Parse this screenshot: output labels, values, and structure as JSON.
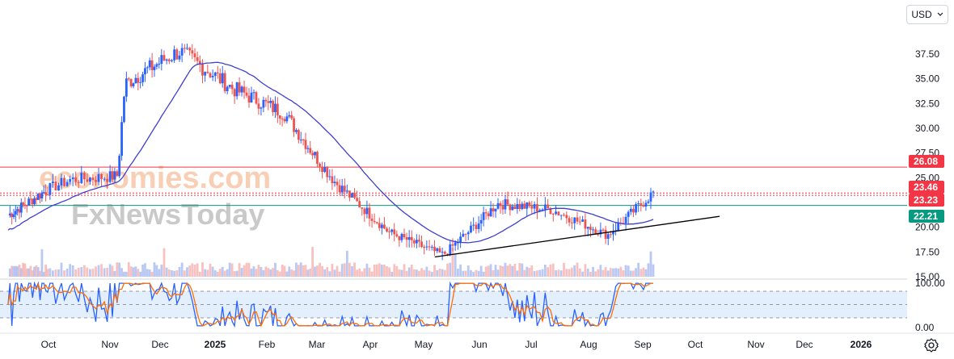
{
  "currency": {
    "label": "USD",
    "icon": "chevron-down-icon"
  },
  "settings": {
    "icon": "gear-icon"
  },
  "watermark": {
    "line1": "economies.com",
    "line2": "FxNewsToday"
  },
  "colors": {
    "up": "#2962ff",
    "down": "#ef5350",
    "ma": "#3f3fd0",
    "resistance": "#f23645",
    "support": "#089981",
    "trend": "#000000",
    "stoch_k": "#2962ff",
    "stoch_d": "#ff6d00",
    "stoch_band": "#e3effd"
  },
  "chart_data": {
    "type": "candlestick",
    "title": "",
    "price_axis": {
      "ticks": [
        "37.50",
        "35.00",
        "32.50",
        "30.00",
        "27.50",
        "25.00",
        "20.00",
        "17.50",
        "15.00"
      ],
      "range": [
        15.0,
        39.3
      ]
    },
    "time_axis": {
      "labels": [
        "Oct",
        "Nov",
        "Dec",
        "2025",
        "Feb",
        "Mar",
        "Apr",
        "May",
        "Jun",
        "Jul",
        "Aug",
        "Sep",
        "Oct",
        "Nov",
        "Dec",
        "2026"
      ],
      "bold": [
        "2025",
        "2026"
      ]
    },
    "price_tags": [
      {
        "label": "26.08",
        "value": 26.08,
        "color": "#f23645"
      },
      {
        "label": "23.46",
        "value": 23.46,
        "color": "#f23645"
      },
      {
        "label": "23.23",
        "value": 23.23,
        "color": "#f23645"
      },
      {
        "label": "22.21",
        "value": 22.21,
        "color": "#089981"
      }
    ],
    "horizontal_levels": [
      {
        "value": 26.08,
        "style": "solid",
        "color": "#f23645"
      },
      {
        "value": 23.46,
        "style": "dotted",
        "color": "#f23645"
      },
      {
        "value": 23.23,
        "style": "dotted",
        "color": "#f23645"
      },
      {
        "value": 22.21,
        "style": "solid",
        "color": "#089981"
      }
    ],
    "trendline": {
      "from": [
        "May",
        17.0
      ],
      "to": [
        "Nov",
        21.1
      ]
    },
    "oscillator": {
      "type": "stochastic",
      "ticks": [
        "100.00",
        "0.00"
      ],
      "levels": [
        80,
        50,
        20
      ],
      "range": [
        0,
        100
      ]
    },
    "key_points": [
      {
        "date": "Sep 2024",
        "close": 21.2
      },
      {
        "date": "Oct 2024",
        "close": 24.8
      },
      {
        "date": "Nov 2024",
        "close": 25.2
      },
      {
        "date": "Nov 2024",
        "close": 34.5
      },
      {
        "date": "Dec 2024",
        "close": 37.8
      },
      {
        "date": "Jan 2025",
        "close": 34.0
      },
      {
        "date": "Feb 2025",
        "close": 31.5
      },
      {
        "date": "Mar 2025",
        "close": 24.5
      },
      {
        "date": "Apr 2025",
        "close": 19.5
      },
      {
        "date": "May 2025",
        "close": 17.2
      },
      {
        "date": "Jun 2025",
        "close": 22.4
      },
      {
        "date": "Jul 2025",
        "close": 21.8
      },
      {
        "date": "Aug 2025",
        "close": 19.2
      },
      {
        "date": "Sep 2025",
        "close": 23.5
      }
    ]
  }
}
